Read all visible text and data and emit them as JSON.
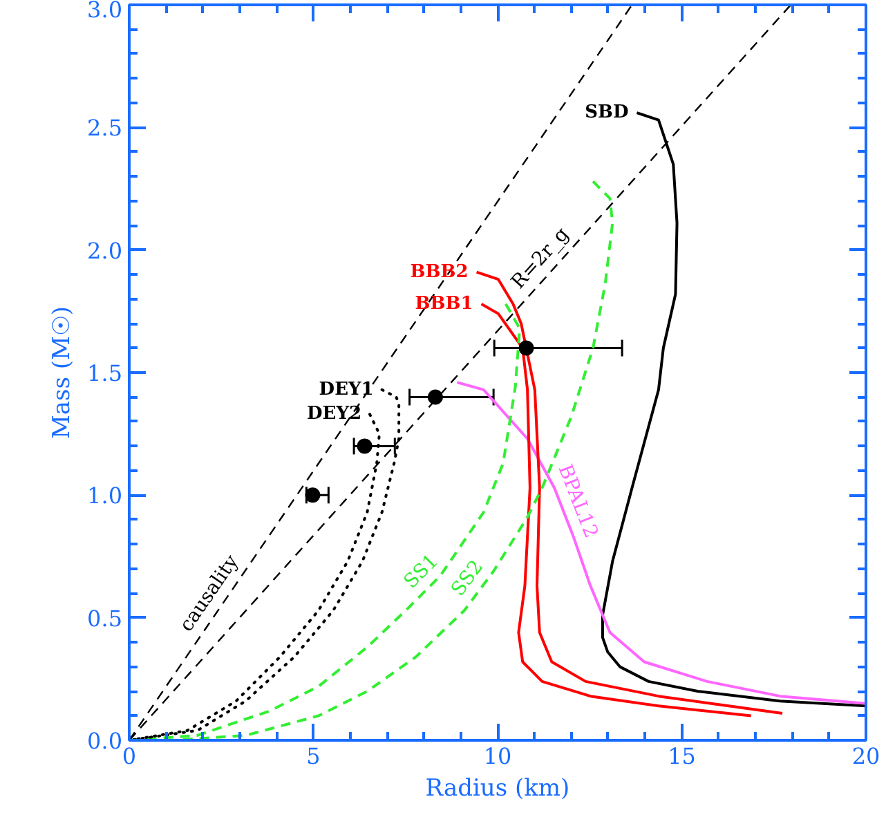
{
  "chart_data": {
    "type": "line",
    "xlabel": "Radius (km)",
    "ylabel": "Mass (M☉)",
    "xlim": [
      0,
      20
    ],
    "ylim": [
      0,
      3.0
    ],
    "xticks": [
      0,
      {
        "value": 1,
        "label": null
      },
      {
        "value": 2,
        "label": null
      },
      {
        "value": 3,
        "label": null
      },
      {
        "value": 4,
        "label": null
      },
      5,
      {
        "value": 6,
        "label": null
      },
      {
        "value": 7,
        "label": null
      },
      {
        "value": 8,
        "label": null
      },
      {
        "value": 9,
        "label": null
      },
      10,
      {
        "value": 11,
        "label": null
      },
      {
        "value": 12,
        "label": null
      },
      {
        "value": 13,
        "label": null
      },
      {
        "value": 14,
        "label": null
      },
      15,
      {
        "value": 16,
        "label": null
      },
      {
        "value": 17,
        "label": null
      },
      {
        "value": 18,
        "label": null
      },
      {
        "value": 19,
        "label": null
      },
      20
    ],
    "yticks": [
      {
        "value": 0,
        "label": "0.0"
      },
      {
        "value": 0.1,
        "label": null
      },
      {
        "value": 0.2,
        "label": null
      },
      {
        "value": 0.3,
        "label": null
      },
      {
        "value": 0.4,
        "label": null
      },
      0.5,
      {
        "value": 0.6,
        "label": null
      },
      {
        "value": 0.7,
        "label": null
      },
      {
        "value": 0.8,
        "label": null
      },
      {
        "value": 0.9,
        "label": null
      },
      {
        "value": 1,
        "label": "1.0"
      },
      {
        "value": 1.1,
        "label": null
      },
      {
        "value": 1.2,
        "label": null
      },
      {
        "value": 1.3,
        "label": null
      },
      {
        "value": 1.4,
        "label": null
      },
      1.5,
      {
        "value": 1.6,
        "label": null
      },
      {
        "value": 1.7,
        "label": null
      },
      {
        "value": 1.8,
        "label": null
      },
      {
        "value": 1.9,
        "label": null
      },
      {
        "value": 2,
        "label": "2.0"
      },
      {
        "value": 2.1,
        "label": null
      },
      {
        "value": 2.2,
        "label": null
      },
      {
        "value": 2.3,
        "label": null
      },
      {
        "value": 2.4,
        "label": null
      },
      2.5,
      {
        "value": 2.6,
        "label": null
      },
      {
        "value": 2.7,
        "label": null
      },
      {
        "value": 2.8,
        "label": null
      },
      {
        "value": 2.9,
        "label": null
      },
      {
        "value": 3,
        "label": "3.0"
      }
    ],
    "series": [
      {
        "color": "#000000",
        "line_style": "dashed",
        "x": [
          0,
          13.65
        ],
        "values": [
          0,
          3.0
        ]
      },
      {
        "color": "#000000",
        "line_style": "dashed",
        "x": [
          0,
          17.96
        ],
        "values": [
          0,
          3.0
        ]
      },
      {
        "color": "#000000",
        "line_style": "solid",
        "x": [
          13.78,
          14.37,
          14.77,
          14.87,
          14.83,
          14.5,
          14.37,
          13.65,
          13.12,
          12.85,
          12.85,
          12.99,
          13.32,
          14.1,
          15.43,
          17.67,
          20
        ],
        "values": [
          2.56,
          2.53,
          2.35,
          2.11,
          1.82,
          1.6,
          1.43,
          1.03,
          0.73,
          0.51,
          0.42,
          0.36,
          0.3,
          0.24,
          0.2,
          0.16,
          0.14
        ]
      },
      {
        "color": "#ff66ff",
        "line_style": "solid",
        "x": [
          8.9,
          9.62,
          10.81,
          11.54,
          12.06,
          12.52,
          13.05,
          13.98,
          15.69,
          17.67,
          20
        ],
        "values": [
          1.46,
          1.43,
          1.23,
          1.03,
          0.83,
          0.63,
          0.44,
          0.32,
          0.24,
          0.18,
          0.15
        ]
      },
      {
        "color": "#ff0000",
        "line_style": "solid",
        "x": [
          9.43,
          10.02,
          10.42,
          10.64,
          11.01,
          11.14,
          11.07,
          11.14,
          11.47,
          12.39,
          14.37,
          17.73
        ],
        "values": [
          1.91,
          1.88,
          1.78,
          1.7,
          1.43,
          1.03,
          0.63,
          0.44,
          0.32,
          0.24,
          0.18,
          0.11
        ]
      },
      {
        "color": "#ff0000",
        "line_style": "solid",
        "x": [
          9.56,
          10.02,
          10.68,
          10.81,
          10.88,
          10.74,
          10.57,
          10.68,
          11.21,
          12.52,
          14.37,
          16.88
        ],
        "values": [
          1.78,
          1.74,
          1.6,
          1.43,
          1.03,
          0.63,
          0.44,
          0.32,
          0.24,
          0.18,
          0.14,
          0.1
        ]
      },
      {
        "color": "#33ee33",
        "line_style": "dashed",
        "x": [
          10.22,
          10.6,
          10.48,
          10.15,
          9.62,
          8.44,
          7.51,
          6.46,
          5.14,
          3.82,
          1.85,
          0
        ],
        "values": [
          1.78,
          1.68,
          1.44,
          1.13,
          0.93,
          0.67,
          0.53,
          0.38,
          0.22,
          0.12,
          0.02,
          0
        ]
      },
      {
        "color": "#33ee33",
        "line_style": "dashed",
        "x": [
          12.59,
          13.05,
          13.12,
          12.92,
          12.59,
          12.0,
          11.21,
          10.81,
          9.89,
          9.1,
          7.78,
          6.46,
          5.14,
          3.16,
          1.19,
          0
        ],
        "values": [
          2.28,
          2.21,
          2.11,
          1.86,
          1.6,
          1.32,
          1.03,
          0.91,
          0.69,
          0.53,
          0.34,
          0.2,
          0.1,
          0.02,
          0,
          0
        ]
      },
      {
        "color": "#000000",
        "line_style": "dotted",
        "x": [
          6.86,
          7.25,
          7.32,
          7.32,
          7.19,
          6.86,
          6.33,
          5.54,
          4.48,
          3.16,
          1.85,
          0
        ],
        "values": [
          1.43,
          1.4,
          1.37,
          1.23,
          1.13,
          0.93,
          0.73,
          0.53,
          0.34,
          0.16,
          0.04,
          0
        ]
      },
      {
        "color": "#000000",
        "line_style": "dotted",
        "x": [
          6.53,
          6.79,
          6.72,
          6.46,
          5.93,
          5.14,
          4.09,
          2.9,
          1.58,
          0
        ],
        "values": [
          1.33,
          1.25,
          1.13,
          0.93,
          0.73,
          0.53,
          0.34,
          0.16,
          0.04,
          0
        ]
      },
      {
        "type": "scatter",
        "color": "#000000",
        "marker": "circle",
        "x": [
          10.78,
          8.31,
          6.39,
          4.98
        ],
        "values": [
          1.6,
          1.4,
          1.2,
          1.0
        ],
        "xerrors": [
          [
            9.91,
            13.38
          ],
          [
            7.61,
            9.89
          ],
          [
            6.1,
            7.21
          ],
          [
            4.81,
            5.41
          ]
        ]
      }
    ],
    "annotations": [
      {
        "text": "SBD",
        "x": 13.78,
        "y": 2.56
      },
      {
        "text": "BBB2",
        "x": 9.43,
        "y": 1.91
      },
      {
        "text": "BBB1",
        "x": 9.56,
        "y": 1.78
      },
      {
        "text": "DEY1",
        "x": 6.86,
        "y": 1.43
      },
      {
        "text": "DEY2",
        "x": 6.53,
        "y": 1.33
      },
      {
        "text": "R=2r_g",
        "x": 11.5,
        "y": 1.92
      },
      {
        "text": "causality",
        "x": 2.55,
        "y": 0.56
      },
      {
        "text": "SS1",
        "x": 8.25,
        "y": 0.64
      },
      {
        "text": "SS2",
        "x": 9.55,
        "y": 0.62
      },
      {
        "text": "BPAL12",
        "x": 11.75,
        "y": 0.95
      }
    ]
  }
}
